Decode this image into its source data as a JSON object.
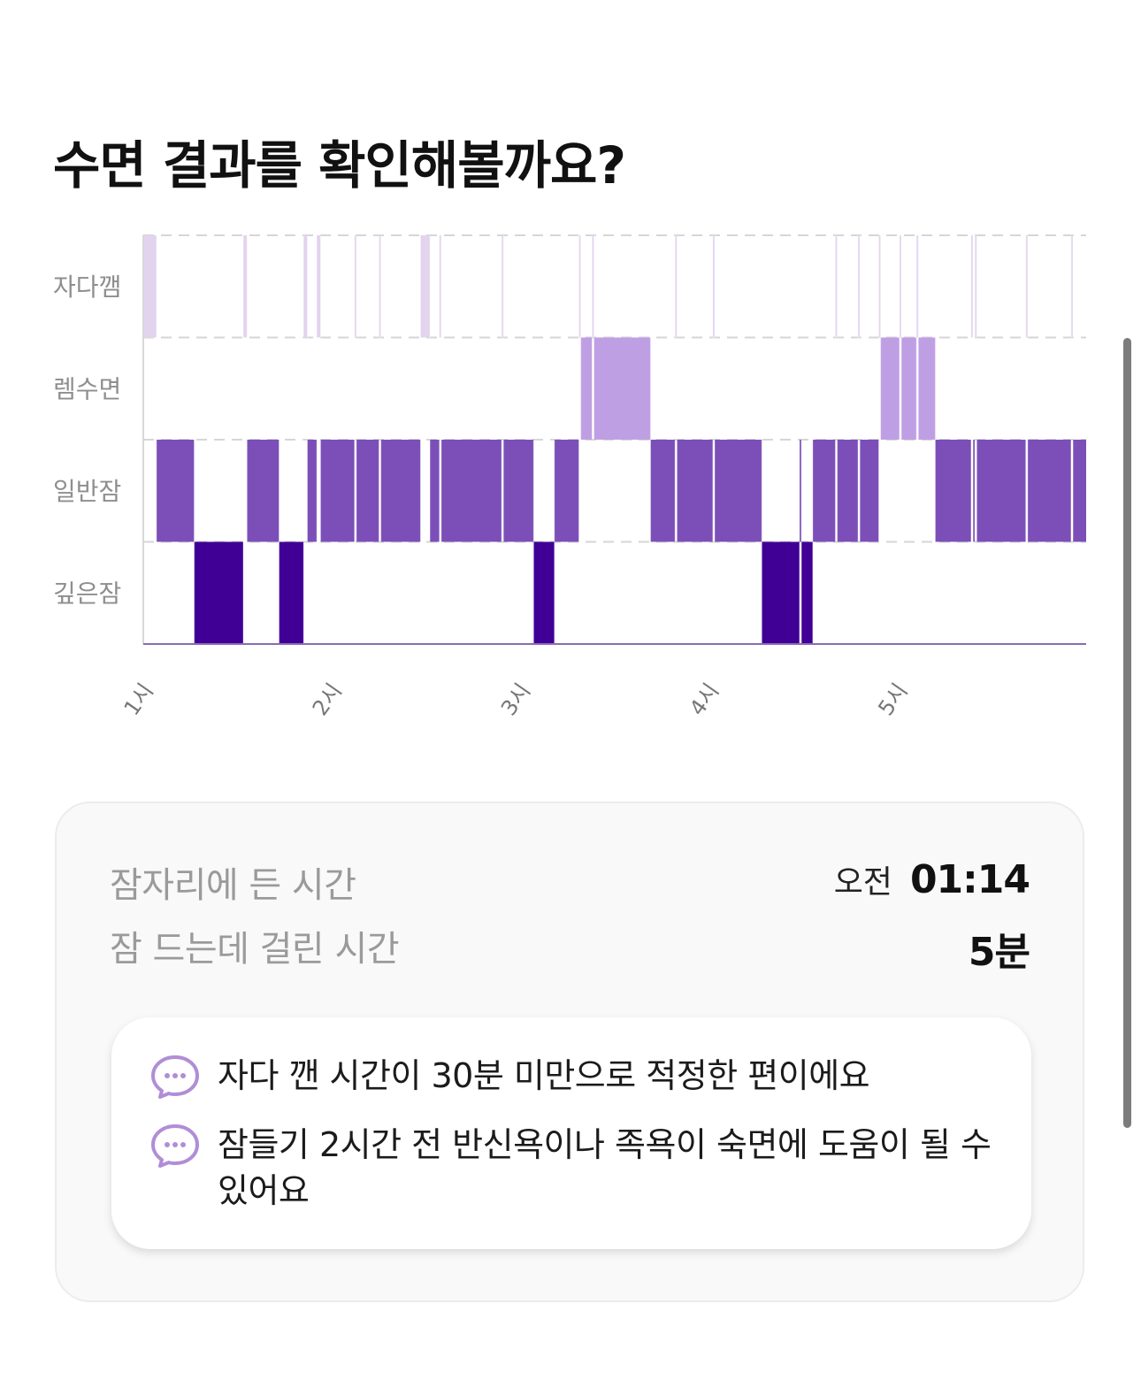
{
  "page": {
    "title": "수면 결과를 확인해볼까요?"
  },
  "chart_data": {
    "type": "sleep-stage timeline",
    "stages": [
      "자다깸",
      "렘수면",
      "일반잠",
      "깊은잠"
    ],
    "x_ticks": [
      {
        "label": "1시",
        "hour": 1.0
      },
      {
        "label": "2시",
        "hour": 2.0
      },
      {
        "label": "3시",
        "hour": 3.0
      },
      {
        "label": "4시",
        "hour": 4.0
      },
      {
        "label": "5시",
        "hour": 5.0
      }
    ],
    "x_range_hours": [
      1.0,
      6.0
    ],
    "gridlines": "dashed",
    "colors": {
      "자다깸": "#e2d3ee",
      "렘수면": "#bf9fe4",
      "일반잠": "#7c4fb8",
      "깊은잠": "#400096"
    },
    "segments": [
      {
        "stage": "자다깸",
        "start": 1.0,
        "end": 1.07
      },
      {
        "stage": "일반잠",
        "start": 1.07,
        "end": 1.27
      },
      {
        "stage": "깊은잠",
        "start": 1.27,
        "end": 1.53
      },
      {
        "stage": "자다깸",
        "start": 1.53,
        "end": 1.55
      },
      {
        "stage": "일반잠",
        "start": 1.55,
        "end": 1.72
      },
      {
        "stage": "깊은잠",
        "start": 1.72,
        "end": 1.85
      },
      {
        "stage": "자다깸",
        "start": 1.85,
        "end": 1.87
      },
      {
        "stage": "일반잠",
        "start": 1.87,
        "end": 1.92
      },
      {
        "stage": "자다깸",
        "start": 1.92,
        "end": 1.94
      },
      {
        "stage": "일반잠",
        "start": 1.94,
        "end": 2.12
      },
      {
        "stage": "자다깸",
        "start": 2.12,
        "end": 2.13
      },
      {
        "stage": "일반잠",
        "start": 2.13,
        "end": 2.25
      },
      {
        "stage": "자다깸",
        "start": 2.25,
        "end": 2.26
      },
      {
        "stage": "일반잠",
        "start": 2.26,
        "end": 2.47
      },
      {
        "stage": "자다깸",
        "start": 2.47,
        "end": 2.52
      },
      {
        "stage": "일반잠",
        "start": 2.52,
        "end": 2.57
      },
      {
        "stage": "자다깸",
        "start": 2.57,
        "end": 2.58
      },
      {
        "stage": "일반잠",
        "start": 2.58,
        "end": 2.9
      },
      {
        "stage": "자다깸",
        "start": 2.9,
        "end": 2.91
      },
      {
        "stage": "일반잠",
        "start": 2.91,
        "end": 3.07
      },
      {
        "stage": "깊은잠",
        "start": 3.07,
        "end": 3.18
      },
      {
        "stage": "일반잠",
        "start": 3.18,
        "end": 3.31
      },
      {
        "stage": "자다깸",
        "start": 3.31,
        "end": 3.32
      },
      {
        "stage": "렘수면",
        "start": 3.32,
        "end": 3.38
      },
      {
        "stage": "자다깸",
        "start": 3.38,
        "end": 3.39
      },
      {
        "stage": "렘수면",
        "start": 3.39,
        "end": 3.69
      },
      {
        "stage": "일반잠",
        "start": 3.69,
        "end": 3.82
      },
      {
        "stage": "자다깸",
        "start": 3.82,
        "end": 3.83
      },
      {
        "stage": "일반잠",
        "start": 3.83,
        "end": 4.02
      },
      {
        "stage": "자다깸",
        "start": 4.02,
        "end": 4.03
      },
      {
        "stage": "일반잠",
        "start": 4.03,
        "end": 4.28
      },
      {
        "stage": "깊은잠",
        "start": 4.28,
        "end": 4.48
      },
      {
        "stage": "일반잠",
        "start": 4.48,
        "end": 4.49
      },
      {
        "stage": "깊은잠",
        "start": 4.49,
        "end": 4.55
      },
      {
        "stage": "일반잠",
        "start": 4.55,
        "end": 4.67
      },
      {
        "stage": "자다깸",
        "start": 4.67,
        "end": 4.68
      },
      {
        "stage": "일반잠",
        "start": 4.68,
        "end": 4.79
      },
      {
        "stage": "자다깸",
        "start": 4.79,
        "end": 4.8
      },
      {
        "stage": "일반잠",
        "start": 4.8,
        "end": 4.9
      },
      {
        "stage": "자다깸",
        "start": 4.9,
        "end": 4.91
      },
      {
        "stage": "렘수면",
        "start": 4.91,
        "end": 5.01
      },
      {
        "stage": "자다깸",
        "start": 5.01,
        "end": 5.02
      },
      {
        "stage": "렘수면",
        "start": 5.02,
        "end": 5.1
      },
      {
        "stage": "자다깸",
        "start": 5.1,
        "end": 5.11
      },
      {
        "stage": "렘수면",
        "start": 5.11,
        "end": 5.2
      },
      {
        "stage": "일반잠",
        "start": 5.2,
        "end": 5.39
      },
      {
        "stage": "자다깸",
        "start": 5.39,
        "end": 5.4
      },
      {
        "stage": "일반잠",
        "start": 5.4,
        "end": 5.41
      },
      {
        "stage": "자다깸",
        "start": 5.41,
        "end": 5.42
      },
      {
        "stage": "일반잠",
        "start": 5.42,
        "end": 5.68
      },
      {
        "stage": "자다깸",
        "start": 5.68,
        "end": 5.69
      },
      {
        "stage": "일반잠",
        "start": 5.69,
        "end": 5.92
      },
      {
        "stage": "자다깸",
        "start": 5.92,
        "end": 5.93
      },
      {
        "stage": "일반잠",
        "start": 5.93,
        "end": 6.0
      }
    ]
  },
  "summary": {
    "bedtime_label": "잠자리에 든 시간",
    "bedtime_ampm": "오전",
    "bedtime_value": "01:14",
    "latency_label": "잠 드는데 걸린 시간",
    "latency_value": "5분"
  },
  "tips": [
    {
      "icon": "chat-bubble-icon",
      "text": "자다 깬 시간이 30분 미만으로 적정한 편이에요"
    },
    {
      "icon": "chat-bubble-icon",
      "text": "잠들기 2시간 전 반신욕이나 족욕이 숙면에 도움이 될 수 있어요"
    }
  ]
}
